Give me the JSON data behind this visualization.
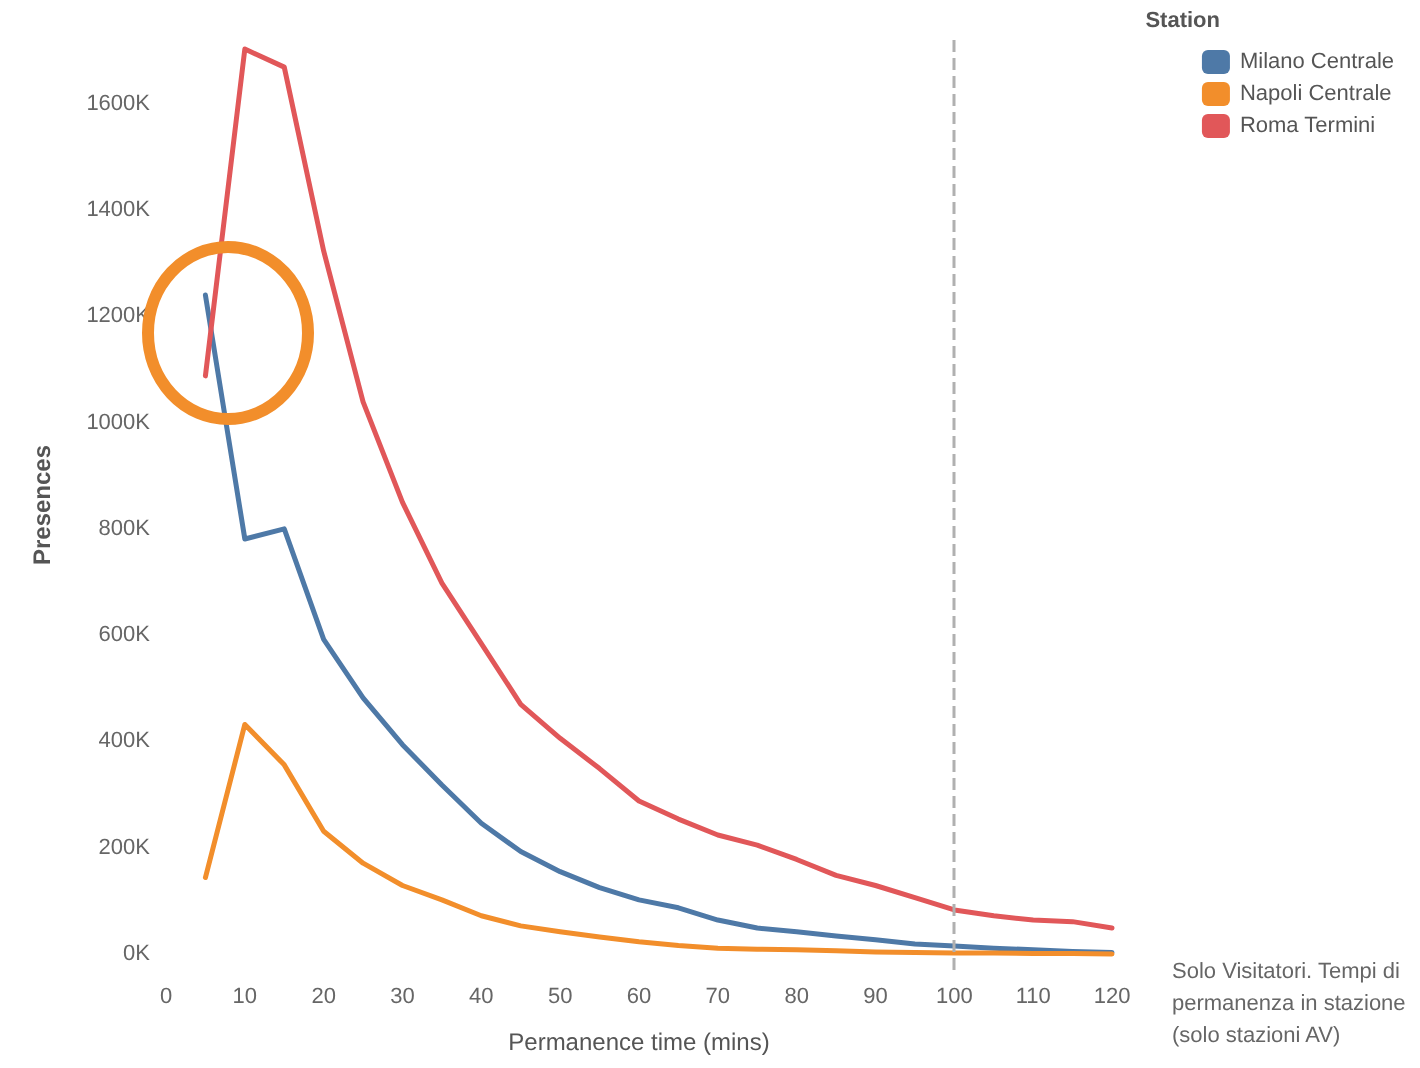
{
  "chart_data": {
    "type": "line",
    "xlabel": "Permanence time (mins)",
    "ylabel": "Presences",
    "legend_title": "Station",
    "legend": "top right",
    "annotations": [
      "Solo Visitatori. Tempi di permanenza in stazione (solo stazioni AV)"
    ],
    "x": [
      5,
      10,
      15,
      20,
      25,
      30,
      35,
      40,
      45,
      50,
      55,
      60,
      65,
      70,
      75,
      80,
      85,
      90,
      95,
      100,
      105,
      110,
      115,
      120
    ],
    "series": [
      {
        "name": "Milano Centrale",
        "color": "#4e79a7",
        "values": [
          1240,
          781,
          800,
          592,
          482,
          394,
          318,
          246,
          193,
          155,
          125,
          102,
          87,
          64,
          49,
          42,
          34,
          27,
          19,
          15,
          11,
          8,
          5,
          3
        ]
      },
      {
        "name": "Napoli Centrale",
        "color": "#f28e2b",
        "values": [
          144,
          432,
          356,
          231,
          171,
          129,
          102,
          72,
          53,
          42,
          32,
          23,
          16,
          11,
          9,
          8,
          6,
          4,
          3,
          2,
          2,
          1,
          1,
          0
        ]
      },
      {
        "name": "Roma Termini",
        "color": "#e15759",
        "values": [
          1088,
          1703,
          1669,
          1323,
          1039,
          850,
          698,
          584,
          470,
          406,
          349,
          288,
          254,
          224,
          205,
          178,
          148,
          129,
          106,
          83,
          72,
          64,
          61,
          49
        ]
      }
    ],
    "xlim": [
      0,
      120
    ],
    "xticks": [
      0,
      10,
      20,
      30,
      40,
      50,
      60,
      70,
      80,
      90,
      100,
      110,
      120
    ],
    "ylim": [
      -30,
      1720
    ],
    "yticks": [
      {
        "value": 0,
        "label": "0K"
      },
      {
        "value": 200,
        "label": "200K"
      },
      {
        "value": 400,
        "label": "400K"
      },
      {
        "value": 600,
        "label": "600K"
      },
      {
        "value": 800,
        "label": "800K"
      },
      {
        "value": 1000,
        "label": "1000K"
      },
      {
        "value": 1200,
        "label": "1200K"
      },
      {
        "value": 1400,
        "label": "1400K"
      },
      {
        "value": 1600,
        "label": "1600K"
      }
    ],
    "ref_lines": [
      {
        "axis": "x",
        "value": 100,
        "color": "#b0b0b0",
        "line_style": "dashed"
      }
    ],
    "grid": false,
    "marker": "none",
    "line_style": "solid"
  }
}
